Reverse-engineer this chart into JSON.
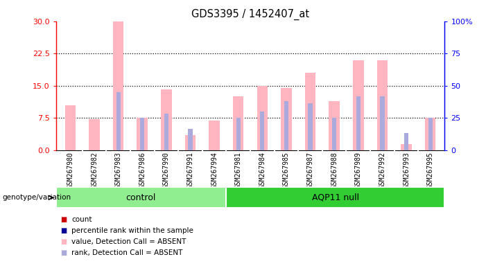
{
  "title": "GDS3395 / 1452407_at",
  "samples": [
    "GSM267980",
    "GSM267982",
    "GSM267983",
    "GSM267986",
    "GSM267990",
    "GSM267991",
    "GSM267994",
    "GSM267981",
    "GSM267984",
    "GSM267985",
    "GSM267987",
    "GSM267988",
    "GSM267989",
    "GSM267992",
    "GSM267993",
    "GSM267995"
  ],
  "n_control": 7,
  "n_aqp": 9,
  "group_control_color": "#90EE90",
  "group_aqp_color": "#32CD32",
  "pink_values": [
    10.5,
    7.2,
    30.0,
    7.5,
    14.2,
    3.5,
    7.0,
    12.5,
    15.0,
    14.5,
    18.0,
    11.5,
    21.0,
    21.0,
    1.5,
    7.5
  ],
  "blue_values": [
    0.0,
    0.0,
    13.5,
    7.5,
    8.5,
    5.0,
    0.0,
    7.5,
    9.0,
    11.5,
    11.0,
    7.5,
    12.5,
    12.5,
    4.0,
    7.5
  ],
  "red_values": [
    0.0,
    0.0,
    0.0,
    0.0,
    0.0,
    0.0,
    0.0,
    0.0,
    0.0,
    0.0,
    0.0,
    0.0,
    0.0,
    0.0,
    0.0,
    0.0
  ],
  "darkblue_values": [
    0.0,
    0.0,
    0.0,
    0.0,
    0.0,
    0.0,
    0.0,
    0.0,
    0.0,
    0.0,
    0.0,
    0.0,
    0.0,
    0.0,
    0.0,
    0.0
  ],
  "ylim_left": [
    0,
    30
  ],
  "ylim_right": [
    0,
    100
  ],
  "yticks_left": [
    0,
    7.5,
    15,
    22.5,
    30
  ],
  "yticks_right": [
    0,
    25,
    50,
    75,
    100
  ],
  "yticklabels_right": [
    "0",
    "25",
    "50",
    "75",
    "100%"
  ],
  "pink_color": "#FFB6C1",
  "blue_color": "#AAAADD",
  "red_color": "#CC0000",
  "darkblue_color": "#000099",
  "pink_bar_width": 0.45,
  "blue_bar_width": 0.18,
  "legend_items": [
    {
      "color": "#CC0000",
      "label": "count"
    },
    {
      "color": "#000099",
      "label": "percentile rank within the sample"
    },
    {
      "color": "#FFB6C1",
      "label": "value, Detection Call = ABSENT"
    },
    {
      "color": "#AAAADD",
      "label": "rank, Detection Call = ABSENT"
    }
  ]
}
